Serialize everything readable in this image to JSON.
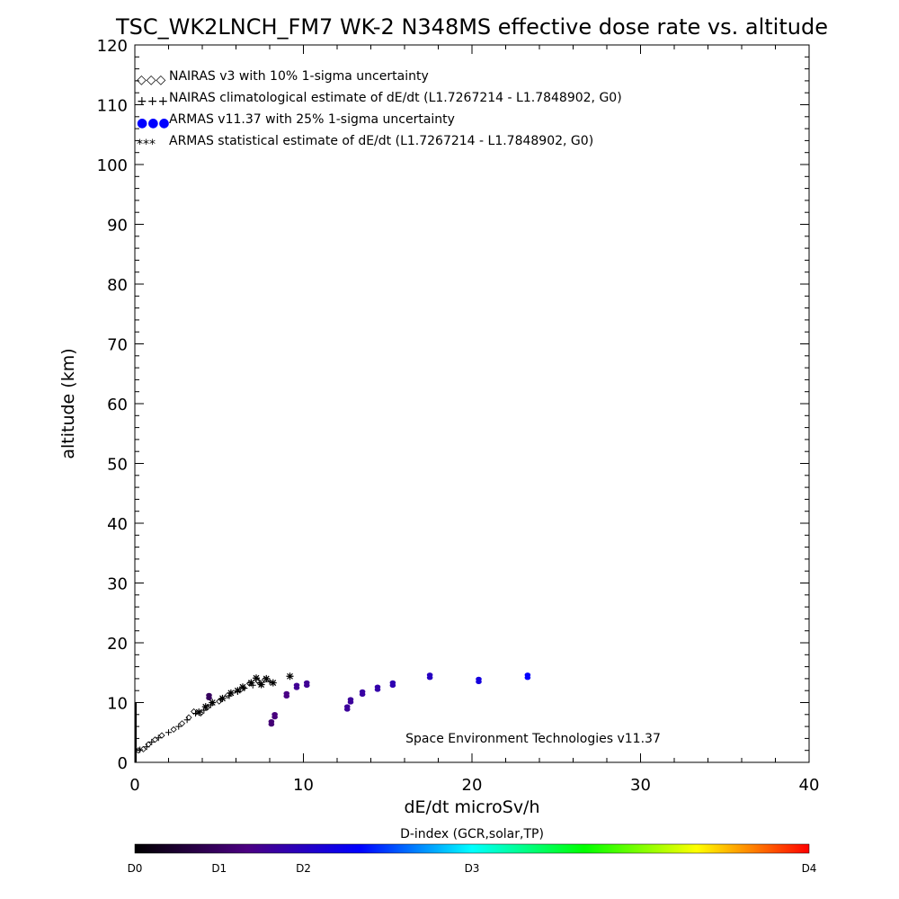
{
  "chart_data": {
    "type": "scatter",
    "title": "TSC_WK2LNCH_FM7 WK-2 N348MS effective dose rate vs. altitude",
    "xlabel": "dE/dt microSv/h",
    "ylabel": "altitude (km)",
    "xlim": [
      0,
      40
    ],
    "ylim": [
      0,
      120
    ],
    "xticks": [
      "0",
      "10",
      "20",
      "30",
      "40"
    ],
    "yticks": [
      "0",
      "10",
      "20",
      "30",
      "40",
      "50",
      "60",
      "70",
      "80",
      "90",
      "100",
      "110",
      "120"
    ],
    "grid": false,
    "legend_placement": "top-left",
    "legend": [
      {
        "symbol": "◇◇◇",
        "label": "NAIRAS v3 with 10% 1-sigma uncertainty"
      },
      {
        "symbol": "+++",
        "label": "NAIRAS climatological estimate of dE/dt (L1.7267214 - L1.7848902, G0)"
      },
      {
        "symbol": "●●●",
        "label": "ARMAS v11.37 with 25% 1-sigma uncertainty"
      },
      {
        "symbol": "***",
        "label": "ARMAS statistical estimate of dE/dt (L1.7267214 - L1.7848902, G0)"
      }
    ],
    "annotation": "Space Environment Technologies v11.37",
    "colorbar": {
      "title": "D-index (GCR,solar,TP)",
      "labels": [
        "D0",
        "D1",
        "D2",
        "D3",
        "D4"
      ],
      "label_positions": [
        0,
        0.125,
        0.25,
        0.5,
        1.0
      ],
      "colors": [
        "#000000",
        "#4b0082",
        "#0000ff",
        "#00ffff",
        "#00ff00",
        "#ffff00",
        "#ff0000"
      ]
    },
    "series": [
      {
        "name": "NAIRAS v3 with 10% 1-sigma uncertainty",
        "marker": "diamond",
        "points": [
          [
            0.2,
            2
          ],
          [
            0.5,
            2.2
          ],
          [
            0.8,
            3
          ],
          [
            1.2,
            3.8
          ],
          [
            1.6,
            4.5
          ],
          [
            2.3,
            5.5
          ],
          [
            2.8,
            6.5
          ],
          [
            3.2,
            7.5
          ],
          [
            3.5,
            8.5
          ],
          [
            3.9,
            8.2
          ],
          [
            4.3,
            9.2
          ],
          [
            5.0,
            10.2
          ],
          [
            5.5,
            11.2
          ],
          [
            6.3,
            12.2
          ],
          [
            6.8,
            13.2
          ],
          [
            7.3,
            13.6
          ],
          [
            7.7,
            13.8
          ]
        ]
      },
      {
        "name": "NAIRAS climatological estimate of dE/dt (L1.7267214 - L1.7848902, G0)",
        "marker": "plus",
        "points": [
          [
            0.3,
            2.1
          ],
          [
            0.7,
            2.6
          ],
          [
            1.0,
            3.4
          ],
          [
            1.4,
            4.1
          ],
          [
            2.0,
            5.0
          ],
          [
            2.6,
            6.0
          ],
          [
            3.1,
            7.1
          ],
          [
            3.6,
            8.2
          ],
          [
            4.1,
            8.7
          ],
          [
            4.5,
            9.6
          ],
          [
            5.1,
            10.5
          ],
          [
            5.6,
            11.1
          ],
          [
            6.1,
            11.8
          ],
          [
            6.5,
            12.4
          ],
          [
            7.0,
            12.9
          ],
          [
            7.4,
            13.3
          ],
          [
            8.0,
            13.5
          ]
        ]
      },
      {
        "name": "ARMAS v11.37 with 25% 1-sigma uncertainty",
        "marker": "dot",
        "points": [
          {
            "x": 4.4,
            "y": 11.0,
            "d": 0.12
          },
          {
            "x": 8.1,
            "y": 6.6,
            "d": 0.15
          },
          {
            "x": 8.3,
            "y": 7.8,
            "d": 0.16
          },
          {
            "x": 9.0,
            "y": 11.3,
            "d": 0.17
          },
          {
            "x": 9.6,
            "y": 12.7,
            "d": 0.19
          },
          {
            "x": 10.2,
            "y": 13.1,
            "d": 0.19
          },
          {
            "x": 12.6,
            "y": 9.1,
            "d": 0.2
          },
          {
            "x": 12.8,
            "y": 10.3,
            "d": 0.2
          },
          {
            "x": 13.5,
            "y": 11.6,
            "d": 0.21
          },
          {
            "x": 14.4,
            "y": 12.4,
            "d": 0.22
          },
          {
            "x": 15.3,
            "y": 13.1,
            "d": 0.23
          },
          {
            "x": 17.5,
            "y": 14.4,
            "d": 0.25
          },
          {
            "x": 20.4,
            "y": 13.7,
            "d": 0.29
          },
          {
            "x": 23.3,
            "y": 14.4,
            "d": 0.33
          }
        ]
      },
      {
        "name": "ARMAS statistical estimate of dE/dt (L1.7267214 - L1.7848902, G0)",
        "marker": "asterisk",
        "points": [
          [
            3.8,
            8.4
          ],
          [
            4.2,
            9.3
          ],
          [
            4.6,
            10.0
          ],
          [
            5.2,
            10.7
          ],
          [
            5.7,
            11.6
          ],
          [
            6.1,
            12.0
          ],
          [
            6.4,
            12.6
          ],
          [
            6.9,
            13.3
          ],
          [
            7.2,
            14.1
          ],
          [
            7.5,
            13.0
          ],
          [
            7.8,
            14.0
          ],
          [
            8.2,
            13.3
          ],
          [
            9.2,
            14.4
          ]
        ]
      },
      {
        "name": "",
        "marker": "segment",
        "points": [
          [
            0,
            0
          ],
          [
            0,
            10
          ]
        ]
      }
    ]
  }
}
